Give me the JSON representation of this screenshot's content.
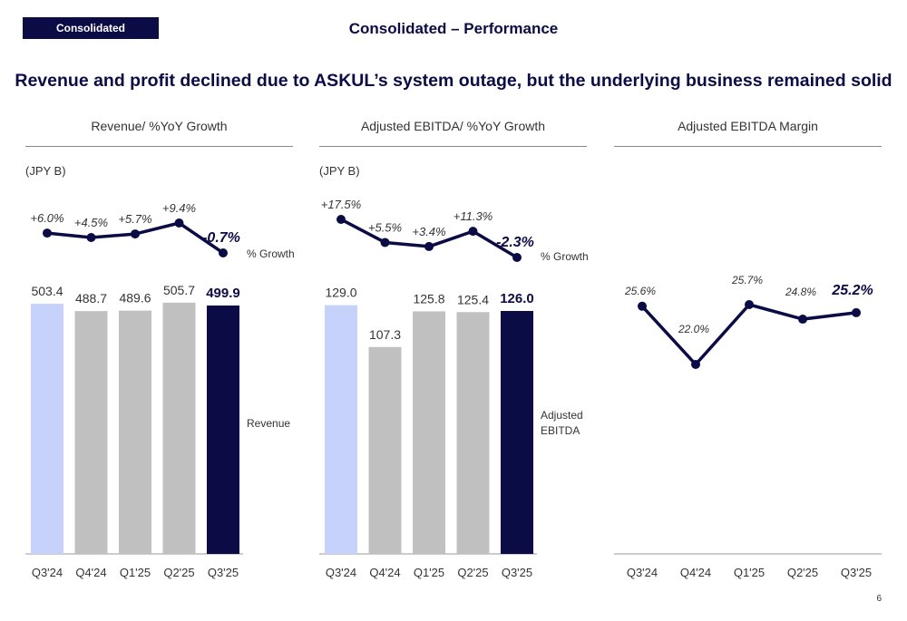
{
  "header": {
    "badge": "Consolidated",
    "title": "Consolidated – Performance",
    "headline": "Revenue and profit declined due to ASKUL’s system outage, but the underlying business remained solid"
  },
  "page_number": "6",
  "colors": {
    "navy": "#0b0b45",
    "light_blue": "#c6d2fa",
    "gray": "#c0c0c0"
  },
  "chart_data": [
    {
      "type": "bar",
      "title": "Revenue/ %YoY Growth",
      "unit": "(JPY B)",
      "categories": [
        "Q3'24",
        "Q4'24",
        "Q1'25",
        "Q2'25",
        "Q3'25"
      ],
      "values": [
        503.4,
        488.7,
        489.6,
        505.7,
        499.9
      ],
      "labels": [
        "503.4",
        "488.7",
        "489.6",
        "505.7",
        "499.9"
      ],
      "series_name": "Revenue",
      "ylim": [
        0,
        520
      ],
      "line": {
        "name": "% Growth",
        "values": [
          6.0,
          4.5,
          5.7,
          9.4,
          -0.7
        ],
        "labels": [
          "+6.0%",
          "+4.5%",
          "+5.7%",
          "+9.4%",
          "-0.7%"
        ]
      }
    },
    {
      "type": "bar",
      "title": "Adjusted EBITDA/ %YoY Growth",
      "unit": "(JPY B)",
      "categories": [
        "Q3'24",
        "Q4'24",
        "Q1'25",
        "Q2'25",
        "Q3'25"
      ],
      "values": [
        129.0,
        107.3,
        125.8,
        125.4,
        126.0
      ],
      "labels": [
        "129.0",
        "107.3",
        "125.8",
        "125.4",
        "126.0"
      ],
      "series_name": "Adjusted EBITDA",
      "ylim": [
        0,
        134
      ],
      "line": {
        "name": "% Growth",
        "values": [
          17.5,
          5.5,
          3.4,
          11.3,
          -2.3
        ],
        "labels": [
          "+17.5%",
          "+5.5%",
          "+3.4%",
          "+11.3%",
          "-2.3%"
        ]
      }
    },
    {
      "type": "line",
      "title": "Adjusted EBITDA Margin",
      "categories": [
        "Q3'24",
        "Q4'24",
        "Q1'25",
        "Q2'25",
        "Q3'25"
      ],
      "values": [
        25.6,
        22.0,
        25.7,
        24.8,
        25.2
      ],
      "labels": [
        "25.6%",
        "22.0%",
        "25.7%",
        "24.8%",
        "25.2%"
      ]
    }
  ]
}
